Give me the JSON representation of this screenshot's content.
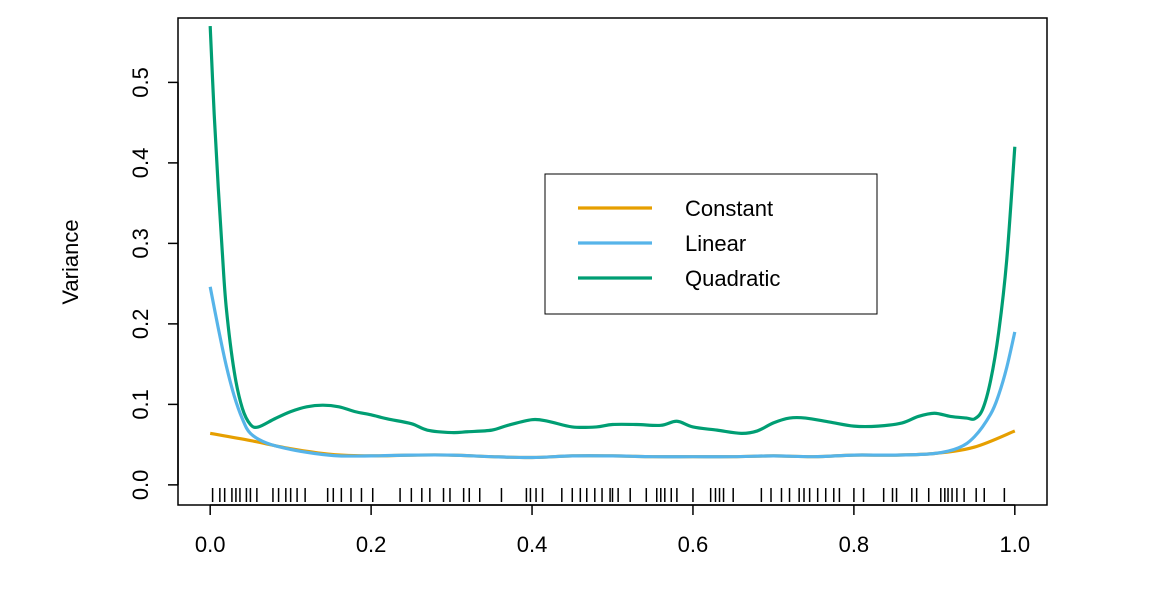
{
  "chart_data": {
    "type": "line",
    "title": "",
    "xlabel": "",
    "ylabel": "Variance",
    "xlim": [
      -0.04,
      1.04
    ],
    "ylim": [
      -0.025,
      0.58
    ],
    "x_ticks": [
      0.0,
      0.2,
      0.4,
      0.6,
      0.8,
      1.0
    ],
    "x_tick_labels": [
      "0.0",
      "0.2",
      "0.4",
      "0.6",
      "0.8",
      "1.0"
    ],
    "y_ticks": [
      0.0,
      0.1,
      0.2,
      0.3,
      0.4,
      0.5
    ],
    "y_tick_labels": [
      "0.0",
      "0.1",
      "0.2",
      "0.3",
      "0.4",
      "0.5"
    ],
    "grid": false,
    "legend": {
      "position": "center-right"
    },
    "series": [
      {
        "name": "Constant",
        "color": "#E69F00",
        "points": [
          [
            0.0,
            0.064
          ],
          [
            0.05,
            0.055
          ],
          [
            0.1,
            0.045
          ],
          [
            0.15,
            0.038
          ],
          [
            0.2,
            0.036
          ],
          [
            0.25,
            0.037
          ],
          [
            0.3,
            0.037
          ],
          [
            0.35,
            0.035
          ],
          [
            0.4,
            0.034
          ],
          [
            0.45,
            0.036
          ],
          [
            0.5,
            0.036
          ],
          [
            0.55,
            0.035
          ],
          [
            0.6,
            0.035
          ],
          [
            0.65,
            0.035
          ],
          [
            0.7,
            0.036
          ],
          [
            0.75,
            0.035
          ],
          [
            0.8,
            0.037
          ],
          [
            0.85,
            0.037
          ],
          [
            0.9,
            0.039
          ],
          [
            0.95,
            0.047
          ],
          [
            1.0,
            0.067
          ]
        ]
      },
      {
        "name": "Linear",
        "color": "#56B4E9",
        "points": [
          [
            0.0,
            0.246
          ],
          [
            0.01,
            0.195
          ],
          [
            0.02,
            0.148
          ],
          [
            0.03,
            0.11
          ],
          [
            0.04,
            0.082
          ],
          [
            0.05,
            0.064
          ],
          [
            0.07,
            0.052
          ],
          [
            0.1,
            0.044
          ],
          [
            0.13,
            0.039
          ],
          [
            0.16,
            0.036
          ],
          [
            0.2,
            0.036
          ],
          [
            0.25,
            0.037
          ],
          [
            0.3,
            0.037
          ],
          [
            0.35,
            0.035
          ],
          [
            0.4,
            0.034
          ],
          [
            0.45,
            0.036
          ],
          [
            0.5,
            0.036
          ],
          [
            0.55,
            0.035
          ],
          [
            0.6,
            0.035
          ],
          [
            0.65,
            0.035
          ],
          [
            0.7,
            0.036
          ],
          [
            0.75,
            0.035
          ],
          [
            0.8,
            0.037
          ],
          [
            0.85,
            0.037
          ],
          [
            0.9,
            0.039
          ],
          [
            0.93,
            0.046
          ],
          [
            0.95,
            0.06
          ],
          [
            0.97,
            0.088
          ],
          [
            0.98,
            0.112
          ],
          [
            0.99,
            0.146
          ],
          [
            1.0,
            0.19
          ]
        ]
      },
      {
        "name": "Quadratic",
        "color": "#009E73",
        "points": [
          [
            0.0,
            0.57
          ],
          [
            0.005,
            0.46
          ],
          [
            0.01,
            0.37
          ],
          [
            0.015,
            0.29
          ],
          [
            0.02,
            0.22
          ],
          [
            0.03,
            0.14
          ],
          [
            0.04,
            0.095
          ],
          [
            0.05,
            0.075
          ],
          [
            0.06,
            0.072
          ],
          [
            0.08,
            0.082
          ],
          [
            0.1,
            0.091
          ],
          [
            0.12,
            0.097
          ],
          [
            0.14,
            0.099
          ],
          [
            0.16,
            0.097
          ],
          [
            0.18,
            0.091
          ],
          [
            0.2,
            0.087
          ],
          [
            0.22,
            0.082
          ],
          [
            0.25,
            0.076
          ],
          [
            0.27,
            0.068
          ],
          [
            0.3,
            0.065
          ],
          [
            0.32,
            0.066
          ],
          [
            0.35,
            0.068
          ],
          [
            0.37,
            0.074
          ],
          [
            0.4,
            0.081
          ],
          [
            0.42,
            0.079
          ],
          [
            0.45,
            0.072
          ],
          [
            0.48,
            0.072
          ],
          [
            0.5,
            0.075
          ],
          [
            0.53,
            0.075
          ],
          [
            0.56,
            0.074
          ],
          [
            0.58,
            0.079
          ],
          [
            0.6,
            0.072
          ],
          [
            0.63,
            0.068
          ],
          [
            0.66,
            0.064
          ],
          [
            0.68,
            0.067
          ],
          [
            0.7,
            0.077
          ],
          [
            0.72,
            0.083
          ],
          [
            0.74,
            0.083
          ],
          [
            0.77,
            0.078
          ],
          [
            0.8,
            0.073
          ],
          [
            0.83,
            0.073
          ],
          [
            0.86,
            0.077
          ],
          [
            0.88,
            0.085
          ],
          [
            0.9,
            0.089
          ],
          [
            0.92,
            0.085
          ],
          [
            0.94,
            0.083
          ],
          [
            0.95,
            0.082
          ],
          [
            0.96,
            0.094
          ],
          [
            0.97,
            0.13
          ],
          [
            0.98,
            0.19
          ],
          [
            0.99,
            0.28
          ],
          [
            1.0,
            0.42
          ]
        ]
      }
    ],
    "rug": [
      0.003,
      0.012,
      0.018,
      0.027,
      0.032,
      0.037,
      0.045,
      0.05,
      0.058,
      0.078,
      0.085,
      0.094,
      0.1,
      0.108,
      0.118,
      0.146,
      0.153,
      0.163,
      0.175,
      0.188,
      0.202,
      0.236,
      0.25,
      0.263,
      0.273,
      0.29,
      0.298,
      0.315,
      0.322,
      0.335,
      0.362,
      0.393,
      0.398,
      0.405,
      0.413,
      0.437,
      0.45,
      0.46,
      0.468,
      0.478,
      0.487,
      0.497,
      0.5,
      0.507,
      0.522,
      0.542,
      0.555,
      0.56,
      0.565,
      0.573,
      0.58,
      0.6,
      0.622,
      0.628,
      0.633,
      0.638,
      0.65,
      0.685,
      0.697,
      0.71,
      0.72,
      0.732,
      0.738,
      0.745,
      0.755,
      0.765,
      0.775,
      0.782,
      0.8,
      0.812,
      0.837,
      0.848,
      0.853,
      0.872,
      0.878,
      0.893,
      0.908,
      0.913,
      0.917,
      0.922,
      0.928,
      0.937,
      0.952,
      0.962,
      0.987
    ]
  }
}
